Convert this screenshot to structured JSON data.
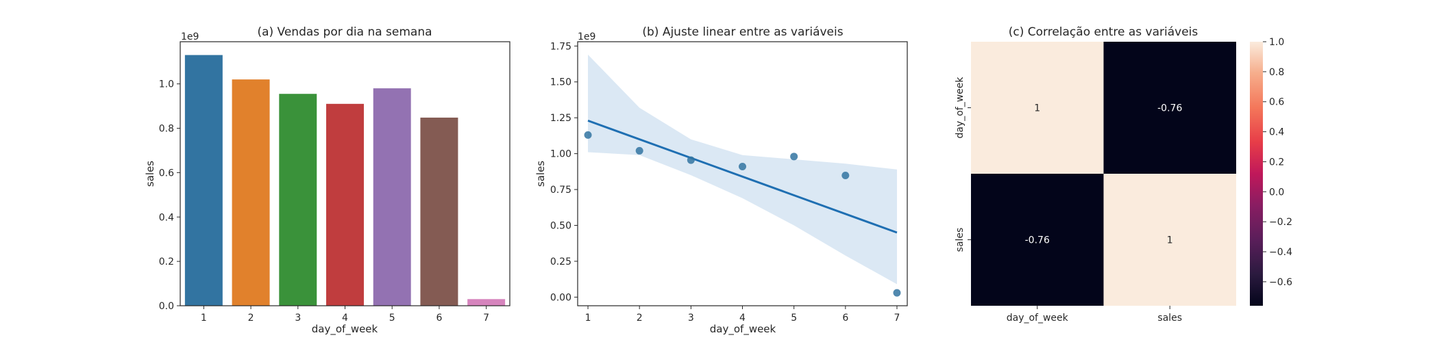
{
  "chart_data": [
    {
      "type": "bar",
      "title": "(a) Vendas por dia na semana",
      "xlabel": "day_of_week",
      "ylabel": "sales",
      "y_offset_label": "1e9",
      "categories": [
        "1",
        "2",
        "3",
        "4",
        "5",
        "6",
        "7"
      ],
      "values": [
        1130000000,
        1020000000,
        955000000,
        910000000,
        980000000,
        848000000,
        30000000
      ],
      "ylim": [
        0,
        1190000000.0
      ],
      "yticks": [
        0,
        200000000.0,
        400000000.0,
        600000000.0,
        800000000.0,
        1000000000.0
      ],
      "ytick_labels": [
        "0.0",
        "0.2",
        "0.4",
        "0.6",
        "0.8",
        "1.0"
      ],
      "colors": [
        "#3274a1",
        "#e1812c",
        "#3a923a",
        "#c03d3e",
        "#9372b2",
        "#845b53",
        "#d684bd"
      ]
    },
    {
      "type": "scatter",
      "title": "(b) Ajuste linear entre as variáveis",
      "xlabel": "day_of_week",
      "ylabel": "sales",
      "y_offset_label": "1e9",
      "x": [
        1,
        2,
        3,
        4,
        5,
        6,
        7
      ],
      "y": [
        1130000000,
        1020000000,
        955000000,
        910000000,
        980000000,
        848000000,
        30000000
      ],
      "fit_line": {
        "x": [
          1,
          7
        ],
        "y": [
          1230000000,
          450000000
        ]
      },
      "ci_band": {
        "x": [
          1,
          2,
          3,
          4,
          5,
          6,
          7
        ],
        "upper": [
          1690000000,
          1320000000,
          1100000000,
          990000000,
          960000000,
          930000000,
          890000000
        ],
        "lower": [
          1010000000,
          990000000,
          850000000,
          690000000,
          500000000,
          290000000,
          90000000
        ]
      },
      "xlim": [
        0.8,
        7.2
      ],
      "ylim": [
        -60000000.0,
        1780000000.0
      ],
      "xticks": [
        "1",
        "2",
        "3",
        "4",
        "5",
        "6",
        "7"
      ],
      "yticks": [
        0,
        250000000.0,
        500000000.0,
        750000000.0,
        1000000000.0,
        1250000000.0,
        1500000000.0,
        1750000000.0
      ],
      "ytick_labels": [
        "0.00",
        "0.25",
        "0.50",
        "0.75",
        "1.00",
        "1.25",
        "1.50",
        "1.75"
      ],
      "point_color": "#3274a1",
      "line_color": "#1f6fb2",
      "band_color": "#c8dcee"
    },
    {
      "type": "heatmap",
      "title": "(c) Correlação entre as variáveis",
      "row_labels": [
        "day_of_week",
        "sales"
      ],
      "col_labels": [
        "day_of_week",
        "sales"
      ],
      "values": [
        [
          1,
          -0.76
        ],
        [
          -0.76,
          1
        ]
      ],
      "annotations": [
        [
          "1",
          "-0.76"
        ],
        [
          "-0.76",
          "1"
        ]
      ],
      "colorbar": {
        "vmin": -0.76,
        "vmax": 1.0,
        "ticks": [
          1.0,
          0.8,
          0.6,
          0.4,
          0.2,
          0.0,
          -0.2,
          -0.4,
          -0.6
        ],
        "tick_labels": [
          "1.0",
          "0.8",
          "0.6",
          "0.4",
          "0.2",
          "0.0",
          "−0.2",
          "−0.4",
          "−0.6"
        ],
        "colormap": "rocket"
      }
    }
  ]
}
